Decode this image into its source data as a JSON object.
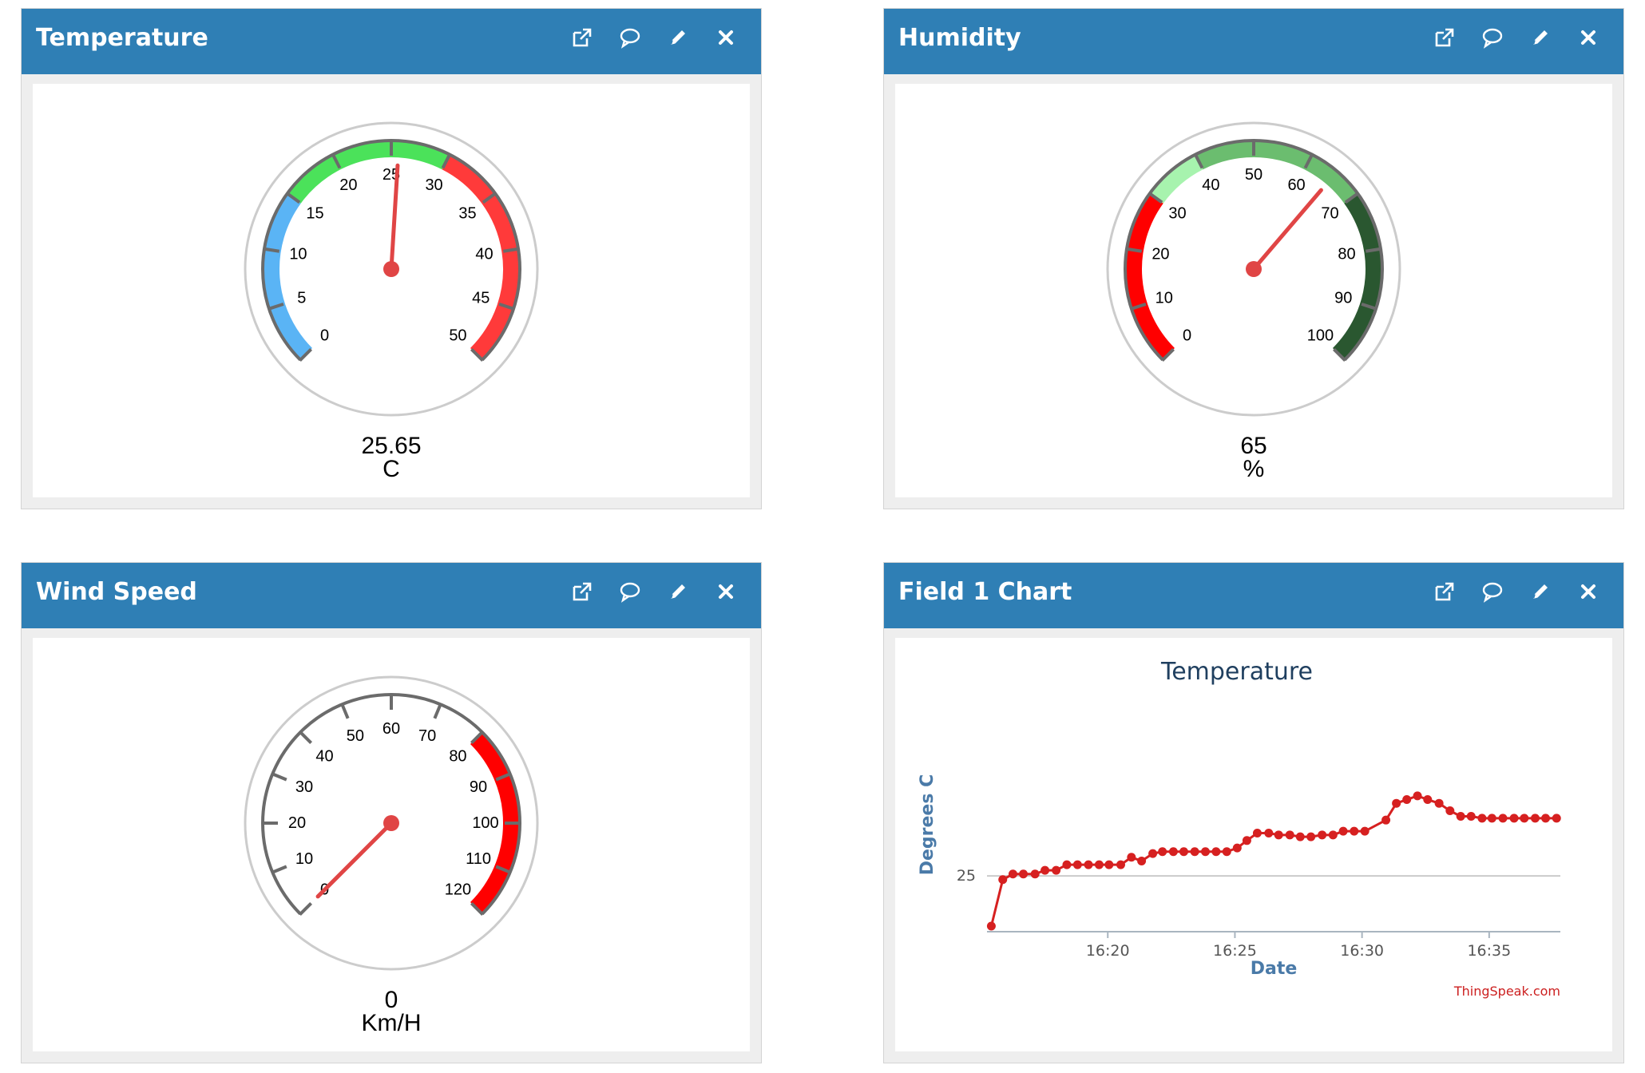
{
  "widgets": {
    "temperature": {
      "title": "Temperature",
      "value": "25.65",
      "unit": "C"
    },
    "humidity": {
      "title": "Humidity",
      "value": "65",
      "unit": "%"
    },
    "wind": {
      "title": "Wind Speed",
      "value": "0",
      "unit": "Km/H"
    },
    "field1": {
      "title": "Field 1 Chart"
    }
  },
  "gauges": {
    "temperature": {
      "min": 0,
      "max": 50,
      "value": 25.65,
      "ticks": [
        "0",
        "5",
        "10",
        "15",
        "20",
        "25",
        "30",
        "35",
        "40",
        "45",
        "50"
      ],
      "bands": [
        {
          "from": 0,
          "to": 15,
          "color": "#5ab4f5"
        },
        {
          "from": 15,
          "to": 30,
          "color": "#4be25a"
        },
        {
          "from": 30,
          "to": 50,
          "color": "#ff3a3a"
        }
      ]
    },
    "humidity": {
      "min": 0,
      "max": 100,
      "value": 65,
      "ticks": [
        "0",
        "10",
        "20",
        "30",
        "40",
        "50",
        "60",
        "70",
        "80",
        "90",
        "100"
      ],
      "bands": [
        {
          "from": 0,
          "to": 30,
          "color": "#ff0000"
        },
        {
          "from": 30,
          "to": 40,
          "color": "#a7f3ae"
        },
        {
          "from": 40,
          "to": 70,
          "color": "#6bbd6f"
        },
        {
          "from": 70,
          "to": 100,
          "color": "#2a5730"
        }
      ]
    },
    "wind": {
      "min": 0,
      "max": 120,
      "value": 0,
      "ticks": [
        "0",
        "10",
        "20",
        "30",
        "40",
        "50",
        "60",
        "70",
        "80",
        "90",
        "100",
        "110",
        "120"
      ],
      "bands": [
        {
          "from": 80,
          "to": 120,
          "color": "#ff0000"
        }
      ]
    }
  },
  "chart_data": {
    "type": "line",
    "title": "Temperature",
    "xlabel": "Date",
    "ylabel": "Degrees C",
    "credit": "ThingSpeak.com",
    "x_tick_labels": [
      "16:20",
      "16:25",
      "16:30",
      "16:35"
    ],
    "x_tick_minutes": [
      20,
      25,
      30,
      35
    ],
    "y_tick_labels": [
      "25"
    ],
    "y_tick_values": [
      25
    ],
    "xlim": [
      15.25,
      37.8
    ],
    "ylim": [
      24.7,
      25.85
    ],
    "series": [
      {
        "name": "Temperature",
        "color": "#d62020",
        "x": [
          15.42,
          15.87,
          16.27,
          16.68,
          17.14,
          17.53,
          17.97,
          18.39,
          18.81,
          19.24,
          19.66,
          20.05,
          20.51,
          20.93,
          21.33,
          21.77,
          22.15,
          22.58,
          22.99,
          23.42,
          23.84,
          24.26,
          24.68,
          25.09,
          25.47,
          25.88,
          26.33,
          26.72,
          27.16,
          27.57,
          27.99,
          28.43,
          28.86,
          29.26,
          29.69,
          30.11,
          30.94,
          31.35,
          31.76,
          32.18,
          32.58,
          33.03,
          33.46,
          33.88,
          34.29,
          34.72,
          35.11,
          35.54,
          35.98,
          36.38,
          36.81,
          37.22,
          37.65
        ],
        "y": [
          24.73,
          24.98,
          25.01,
          25.01,
          25.01,
          25.03,
          25.03,
          25.06,
          25.06,
          25.06,
          25.06,
          25.06,
          25.06,
          25.1,
          25.08,
          25.12,
          25.13,
          25.13,
          25.13,
          25.13,
          25.13,
          25.13,
          25.13,
          25.15,
          25.19,
          25.23,
          25.23,
          25.22,
          25.22,
          25.21,
          25.21,
          25.22,
          25.22,
          25.24,
          25.24,
          25.24,
          25.3,
          25.39,
          25.41,
          25.43,
          25.41,
          25.39,
          25.35,
          25.32,
          25.32,
          25.31,
          25.31,
          25.31,
          25.31,
          25.31,
          25.31,
          25.31,
          25.31
        ]
      }
    ]
  }
}
